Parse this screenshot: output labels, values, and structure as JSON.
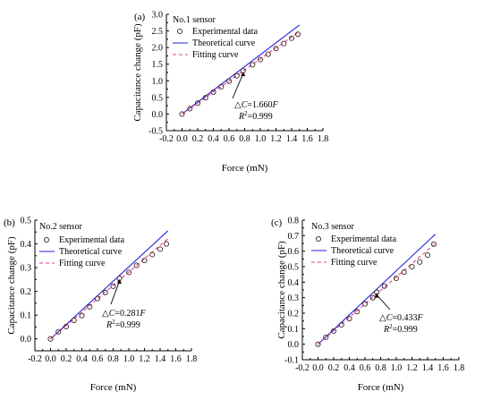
{
  "colors": {
    "experimental": "#3a2a1e",
    "theoretical": "#2222dd",
    "fitting": "#e83aa8",
    "axis": "#000000"
  },
  "chart_data": [
    {
      "type": "scatter",
      "panel_label": "(a)",
      "sensor_label": "No.1 sensor",
      "xlabel": "Force (mN)",
      "ylabel": "Capacitance change (pF)",
      "xlim": [
        -0.2,
        1.8
      ],
      "ylim": [
        -0.5,
        3.0
      ],
      "xticks": [
        "-0.2",
        "0.0",
        "0.2",
        "0.4",
        "0.6",
        "0.8",
        "1.0",
        "1.2",
        "1.4",
        "1.6",
        "1.8"
      ],
      "yticks": [
        "-0.5",
        "0.0",
        "0.5",
        "1.0",
        "1.5",
        "2.0",
        "2.5",
        "3.0"
      ],
      "legend": [
        "Experimental data",
        "Theoretical curve",
        "Fitting curve"
      ],
      "annotation_eq_prefix": "△",
      "annotation_eq_var": "C",
      "annotation_eq_mid": "=1.660",
      "annotation_eq_force": "F",
      "annotation_r2_var": "R",
      "annotation_r2_exp": "2",
      "annotation_r2_val": "=0.999",
      "annotation_arrow_to": [
        0.78,
        1.3
      ],
      "series": [
        {
          "name": "Experimental data",
          "kind": "points",
          "x": [
            0.0,
            0.1,
            0.2,
            0.3,
            0.4,
            0.5,
            0.6,
            0.7,
            0.78,
            0.9,
            1.0,
            1.1,
            1.2,
            1.3,
            1.4,
            1.48
          ],
          "y": [
            0.0,
            0.16,
            0.33,
            0.49,
            0.66,
            0.82,
            0.99,
            1.15,
            1.3,
            1.48,
            1.64,
            1.8,
            1.97,
            2.12,
            2.28,
            2.4
          ]
        },
        {
          "name": "Theoretical curve",
          "kind": "line",
          "x": [
            0.0,
            1.5
          ],
          "y": [
            0.0,
            2.68
          ]
        },
        {
          "name": "Fitting curve",
          "kind": "dashed",
          "x": [
            0.0,
            1.5
          ],
          "y": [
            0.0,
            2.49
          ]
        }
      ]
    },
    {
      "type": "scatter",
      "panel_label": "(b)",
      "sensor_label": "No.2 sensor",
      "xlabel": "Force (mN)",
      "ylabel": "Capacitance change (pF)",
      "xlim": [
        -0.2,
        1.8
      ],
      "ylim": [
        -0.05,
        0.5
      ],
      "xticks": [
        "-0.2",
        "0.0",
        "0.2",
        "0.4",
        "0.6",
        "0.8",
        "1.0",
        "1.2",
        "1.4",
        "1.6",
        "1.8"
      ],
      "yticks": [
        "0.0",
        "0.1",
        "0.2",
        "0.3",
        "0.4",
        "0.5"
      ],
      "legend": [
        "Experimental data",
        "Theoretical curve",
        "Fitting curve"
      ],
      "annotation_eq_prefix": "△",
      "annotation_eq_var": "C",
      "annotation_eq_mid": "=0.281",
      "annotation_eq_force": "F",
      "annotation_r2_var": "R",
      "annotation_r2_exp": "2",
      "annotation_r2_val": "=0.999",
      "annotation_arrow_to": [
        0.88,
        0.255
      ],
      "series": [
        {
          "name": "Experimental data",
          "kind": "points",
          "x": [
            0.0,
            0.1,
            0.2,
            0.3,
            0.4,
            0.5,
            0.6,
            0.7,
            0.8,
            0.88,
            1.0,
            1.1,
            1.2,
            1.3,
            1.4,
            1.48
          ],
          "y": [
            0.0,
            0.03,
            0.052,
            0.078,
            0.098,
            0.135,
            0.17,
            0.195,
            0.222,
            0.255,
            0.28,
            0.31,
            0.33,
            0.355,
            0.378,
            0.4
          ]
        },
        {
          "name": "Theoretical curve",
          "kind": "line",
          "x": [
            0.0,
            1.5
          ],
          "y": [
            0.0,
            0.455
          ]
        },
        {
          "name": "Fitting curve",
          "kind": "dashed",
          "x": [
            0.0,
            1.5
          ],
          "y": [
            0.0,
            0.422
          ]
        }
      ]
    },
    {
      "type": "scatter",
      "panel_label": "(c)",
      "sensor_label": "No.3 sensor",
      "xlabel": "Force (mN)",
      "ylabel": "Capacitance change (pF)",
      "xlim": [
        -0.2,
        1.8
      ],
      "ylim": [
        -0.1,
        0.8
      ],
      "xticks": [
        "-0.2",
        "0.0",
        "0.2",
        "0.4",
        "0.6",
        "0.8",
        "1.0",
        "1.2",
        "1.4",
        "1.6",
        "1.8"
      ],
      "yticks": [
        "-0.1",
        "0.0",
        "0.1",
        "0.2",
        "0.3",
        "0.4",
        "0.5",
        "0.6",
        "0.7",
        "0.8"
      ],
      "legend": [
        "Experimental data",
        "Theoretical curve",
        "Fitting curve"
      ],
      "annotation_eq_prefix": "△",
      "annotation_eq_var": "C",
      "annotation_eq_mid": "=0.433",
      "annotation_eq_force": "F",
      "annotation_r2_var": "R",
      "annotation_r2_exp": "2",
      "annotation_r2_val": "=0.999",
      "annotation_arrow_to": [
        0.75,
        0.335
      ],
      "series": [
        {
          "name": "Experimental data",
          "kind": "points",
          "x": [
            0.0,
            0.1,
            0.2,
            0.3,
            0.4,
            0.5,
            0.6,
            0.7,
            0.75,
            0.85,
            1.0,
            1.1,
            1.2,
            1.3,
            1.4,
            1.48
          ],
          "y": [
            0.0,
            0.045,
            0.085,
            0.125,
            0.165,
            0.21,
            0.26,
            0.3,
            0.335,
            0.375,
            0.425,
            0.465,
            0.5,
            0.53,
            0.575,
            0.645
          ]
        },
        {
          "name": "Theoretical curve",
          "kind": "line",
          "x": [
            0.0,
            1.5
          ],
          "y": [
            0.0,
            0.71
          ]
        },
        {
          "name": "Fitting curve",
          "kind": "dashed",
          "x": [
            0.0,
            1.5
          ],
          "y": [
            0.0,
            0.65
          ]
        }
      ]
    }
  ]
}
